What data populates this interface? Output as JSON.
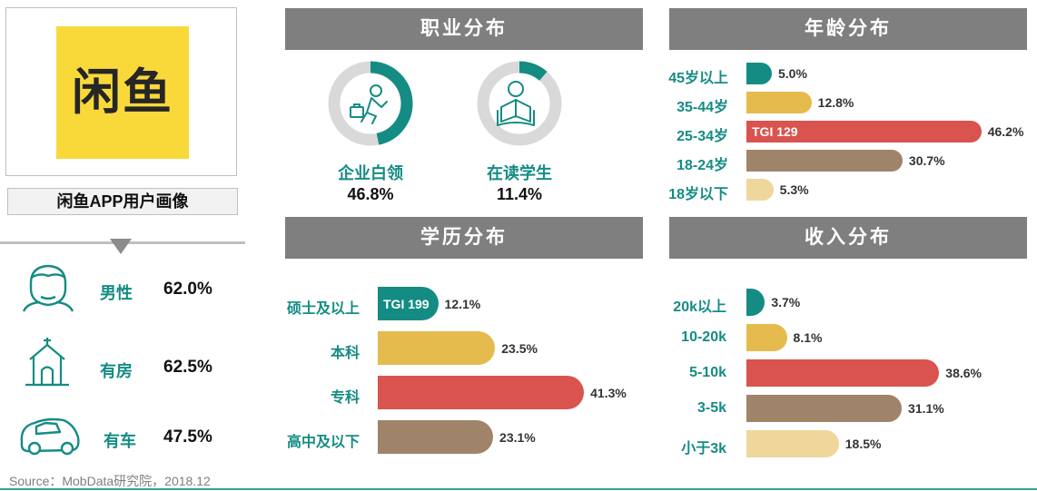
{
  "profile": {
    "logo_text": "闲鱼",
    "title": "闲鱼APP用户画像",
    "traits": [
      {
        "label": "男性",
        "value": "62.0%"
      },
      {
        "label": "有房",
        "value": "62.5%"
      },
      {
        "label": "有车",
        "value": "47.5%"
      }
    ],
    "source": "Source：MobData研究院，2018.12"
  },
  "colors": {
    "teal": "#148c84",
    "gold": "#e5bb4d",
    "red": "#d9534f",
    "brown": "#a08469",
    "cream": "#efd79b",
    "header_gray": "#7f7f7f",
    "donut_gray": "#d9d9d9",
    "logo_yellow": "#f9d93a"
  },
  "chart_data": [
    {
      "type": "pie",
      "title": "职业分布",
      "slices": [
        {
          "name": "企业白领",
          "value": 46.8,
          "label": "46.8%",
          "icon": "white-collar-worker-icon"
        },
        {
          "name": "在读学生",
          "value": 11.4,
          "label": "11.4%",
          "icon": "student-reading-icon"
        }
      ]
    },
    {
      "type": "bar",
      "orientation": "horizontal",
      "title": "年龄分布",
      "categories": [
        "45岁以上",
        "35-44岁",
        "25-34岁",
        "18-24岁",
        "18岁以下"
      ],
      "values": [
        5.0,
        12.8,
        46.2,
        30.7,
        5.3
      ],
      "value_labels": [
        "5.0%",
        "12.8%",
        "46.2%",
        "30.7%",
        "5.3%"
      ],
      "colors": [
        "#148c84",
        "#e5bb4d",
        "#d9534f",
        "#a08469",
        "#efd79b"
      ],
      "annotations": [
        {
          "category": "25-34岁",
          "text": "TGI 129"
        }
      ]
    },
    {
      "type": "bar",
      "orientation": "horizontal",
      "title": "学历分布",
      "categories": [
        "硕士及以上",
        "本科",
        "专科",
        "高中及以下"
      ],
      "values": [
        12.1,
        23.5,
        41.3,
        23.1
      ],
      "value_labels": [
        "12.1%",
        "23.5%",
        "41.3%",
        "23.1%"
      ],
      "colors": [
        "#148c84",
        "#e5bb4d",
        "#d9534f",
        "#a08469"
      ],
      "annotations": [
        {
          "category": "硕士及以上",
          "text": "TGI 199"
        }
      ]
    },
    {
      "type": "bar",
      "orientation": "horizontal",
      "title": "收入分布",
      "categories": [
        "20k以上",
        "10-20k",
        "5-10k",
        "3-5k",
        "小于3k"
      ],
      "values": [
        3.7,
        8.1,
        38.6,
        31.1,
        18.5
      ],
      "value_labels": [
        "3.7%",
        "8.1%",
        "38.6%",
        "31.1%",
        "18.5%"
      ],
      "colors": [
        "#148c84",
        "#e5bb4d",
        "#d9534f",
        "#a08469",
        "#efd79b"
      ]
    }
  ]
}
